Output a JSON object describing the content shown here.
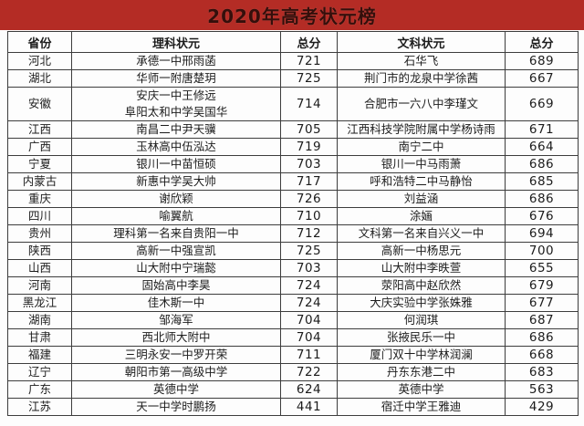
{
  "title": "2020年高考状元榜",
  "colors": {
    "banner_red": "#b42c25",
    "banner_text": "#350f0b",
    "table_border": "#3d3d3d",
    "body_text": "#1c1c1c",
    "page_background": "#fdfdfd"
  },
  "table": {
    "headers": [
      "省份",
      "理科状元",
      "总分",
      "文科状元",
      "总分"
    ],
    "rows": [
      {
        "province": "河北",
        "science": [
          "承德一中邢雨菡"
        ],
        "science_score": "721",
        "arts": "石华飞",
        "arts_score": "689"
      },
      {
        "province": "湖北",
        "science": [
          "华师一附唐楚玥"
        ],
        "science_score": "725",
        "arts": "荆门市的龙泉中学徐茜",
        "arts_score": "667"
      },
      {
        "province": "安徽",
        "science": [
          "安庆一中王修远",
          "阜阳太和中学吴国华"
        ],
        "science_score": "714",
        "arts": "合肥市一六八中李瑾文",
        "arts_score": "669"
      },
      {
        "province": "江西",
        "science": [
          "南昌二中尹天骥"
        ],
        "science_score": "705",
        "arts": "江西科技学院附属中学杨诗雨",
        "arts_score": "671"
      },
      {
        "province": "广西",
        "science": [
          "玉林高中伍泓达"
        ],
        "science_score": "719",
        "arts": "南宁二中",
        "arts_score": "664"
      },
      {
        "province": "宁夏",
        "science": [
          "银川一中苗恒硕"
        ],
        "science_score": "703",
        "arts": "银川一中马雨萧",
        "arts_score": "686"
      },
      {
        "province": "内蒙古",
        "science": [
          "新惠中学吴大帅"
        ],
        "science_score": "717",
        "arts": "呼和浩特二中马静怡",
        "arts_score": "685"
      },
      {
        "province": "重庆",
        "science": [
          "谢欣颖"
        ],
        "science_score": "726",
        "arts": "刘益涵",
        "arts_score": "686"
      },
      {
        "province": "四川",
        "science": [
          "喻翼航"
        ],
        "science_score": "710",
        "arts": "涂婳",
        "arts_score": "676"
      },
      {
        "province": "贵州",
        "science": [
          "理科第一名来自贵阳一中"
        ],
        "science_score": "712",
        "arts": "文科第一名来自兴义一中",
        "arts_score": "694"
      },
      {
        "province": "陕西",
        "science": [
          "高新一中强宣凯"
        ],
        "science_score": "725",
        "arts": "高新一中杨思元",
        "arts_score": "700"
      },
      {
        "province": "山西",
        "science": [
          "山大附中宁瑞懿"
        ],
        "science_score": "703",
        "arts": "山大附中李昳萱",
        "arts_score": "655"
      },
      {
        "province": "河南",
        "science": [
          "固始高中李昊"
        ],
        "science_score": "724",
        "arts": "荥阳高中赵欣然",
        "arts_score": "679"
      },
      {
        "province": "黑龙江",
        "science": [
          "佳木斯一中"
        ],
        "science_score": "724",
        "arts": "大庆实验中学张姝雅",
        "arts_score": "677"
      },
      {
        "province": "湖南",
        "science": [
          "邹海军"
        ],
        "science_score": "704",
        "arts": "何润琪",
        "arts_score": "687"
      },
      {
        "province": "甘肃",
        "science": [
          "西北师大附中"
        ],
        "science_score": "704",
        "arts": "张掖民乐一中",
        "arts_score": "686"
      },
      {
        "province": "福建",
        "science": [
          "三明永安一中罗开荣"
        ],
        "science_score": "711",
        "arts": "厦门双十中学林润澜",
        "arts_score": "668"
      },
      {
        "province": "辽宁",
        "science": [
          "朝阳市第一高级中学"
        ],
        "science_score": "722",
        "arts": "丹东东港二中",
        "arts_score": "683"
      },
      {
        "province": "广东",
        "science": [
          "英德中学"
        ],
        "science_score": "624",
        "arts": "英德中学",
        "arts_score": "563"
      },
      {
        "province": "江苏",
        "science": [
          "天一中学时鹏扬"
        ],
        "science_score": "441",
        "arts": "宿迁中学王雅迪",
        "arts_score": "429"
      }
    ]
  }
}
